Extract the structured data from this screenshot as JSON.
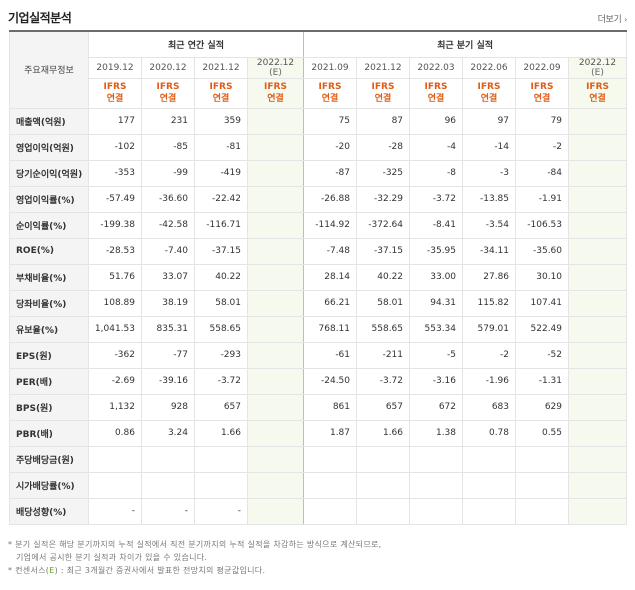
{
  "header": {
    "title": "기업실적분석",
    "more_label": "더보기",
    "more_arrow": "›"
  },
  "table": {
    "row_header_label": "주요재무정보",
    "annual_group_label": "최근 연간 실적",
    "quarter_group_label": "최근 분기 실적",
    "annual_periods": [
      {
        "label": "2019.12",
        "estimate": false
      },
      {
        "label": "2020.12",
        "estimate": false
      },
      {
        "label": "2021.12",
        "estimate": false
      },
      {
        "label": "2022.12",
        "est_label": "(E)",
        "estimate": true
      }
    ],
    "quarter_periods": [
      {
        "label": "2021.09",
        "estimate": false
      },
      {
        "label": "2021.12",
        "estimate": false
      },
      {
        "label": "2022.03",
        "estimate": false
      },
      {
        "label": "2022.06",
        "estimate": false
      },
      {
        "label": "2022.09",
        "estimate": false
      },
      {
        "label": "2022.12",
        "est_label": "(E)",
        "estimate": true
      }
    ],
    "accounting": {
      "line1": "IFRS",
      "line2": "연결"
    },
    "rows": [
      {
        "label": "매출액(억원)",
        "annual": [
          "177",
          "231",
          "359",
          ""
        ],
        "quarter": [
          "75",
          "87",
          "96",
          "97",
          "79",
          ""
        ]
      },
      {
        "label": "영업이익(억원)",
        "annual": [
          "-102",
          "-85",
          "-81",
          ""
        ],
        "quarter": [
          "-20",
          "-28",
          "-4",
          "-14",
          "-2",
          ""
        ]
      },
      {
        "label": "당기순이익(억원)",
        "annual": [
          "-353",
          "-99",
          "-419",
          ""
        ],
        "quarter": [
          "-87",
          "-325",
          "-8",
          "-3",
          "-84",
          ""
        ]
      },
      {
        "label": "영업이익률(%)",
        "annual": [
          "-57.49",
          "-36.60",
          "-22.42",
          ""
        ],
        "quarter": [
          "-26.88",
          "-32.29",
          "-3.72",
          "-13.85",
          "-1.91",
          ""
        ]
      },
      {
        "label": "순이익률(%)",
        "annual": [
          "-199.38",
          "-42.58",
          "-116.71",
          ""
        ],
        "quarter": [
          "-114.92",
          "-372.64",
          "-8.41",
          "-3.54",
          "-106.53",
          ""
        ]
      },
      {
        "label": "ROE(%)",
        "annual": [
          "-28.53",
          "-7.40",
          "-37.15",
          ""
        ],
        "quarter": [
          "-7.48",
          "-37.15",
          "-35.95",
          "-34.11",
          "-35.60",
          ""
        ]
      },
      {
        "label": "부채비율(%)",
        "annual": [
          "51.76",
          "33.07",
          "40.22",
          ""
        ],
        "quarter": [
          "28.14",
          "40.22",
          "33.00",
          "27.86",
          "30.10",
          ""
        ]
      },
      {
        "label": "당좌비율(%)",
        "annual": [
          "108.89",
          "38.19",
          "58.01",
          ""
        ],
        "quarter": [
          "66.21",
          "58.01",
          "94.31",
          "115.82",
          "107.41",
          ""
        ]
      },
      {
        "label": "유보율(%)",
        "annual": [
          "1,041.53",
          "835.31",
          "558.65",
          ""
        ],
        "quarter": [
          "768.11",
          "558.65",
          "553.34",
          "579.01",
          "522.49",
          ""
        ]
      },
      {
        "label": "EPS(원)",
        "annual": [
          "-362",
          "-77",
          "-293",
          ""
        ],
        "quarter": [
          "-61",
          "-211",
          "-5",
          "-2",
          "-52",
          ""
        ]
      },
      {
        "label": "PER(배)",
        "annual": [
          "-2.69",
          "-39.16",
          "-3.72",
          ""
        ],
        "quarter": [
          "-24.50",
          "-3.72",
          "-3.16",
          "-1.96",
          "-1.31",
          ""
        ]
      },
      {
        "label": "BPS(원)",
        "annual": [
          "1,132",
          "928",
          "657",
          ""
        ],
        "quarter": [
          "861",
          "657",
          "672",
          "683",
          "629",
          ""
        ]
      },
      {
        "label": "PBR(배)",
        "annual": [
          "0.86",
          "3.24",
          "1.66",
          ""
        ],
        "quarter": [
          "1.87",
          "1.66",
          "1.38",
          "0.78",
          "0.55",
          ""
        ]
      },
      {
        "label": "주당배당금(원)",
        "annual": [
          "",
          "",
          "",
          ""
        ],
        "quarter": [
          "",
          "",
          "",
          "",
          "",
          ""
        ]
      },
      {
        "label": "시가배당률(%)",
        "annual": [
          "",
          "",
          "",
          ""
        ],
        "quarter": [
          "",
          "",
          "",
          "",
          "",
          ""
        ]
      },
      {
        "label": "배당성향(%)",
        "annual": [
          "-",
          "-",
          "-",
          ""
        ],
        "quarter": [
          "",
          "",
          "",
          "",
          "",
          ""
        ]
      }
    ]
  },
  "notes": {
    "line1": "* 분기 실적은 해당 분기까지의 누적 실적에서 직전 분기까지의 누적 실적을 차감하는 방식으로 계산되므로,",
    "line2": "기업에서 공시한 분기 실적과 차이가 있을 수 있습니다.",
    "line3_prefix": "* 컨센서스(",
    "line3_e": "E",
    "line3_suffix": ") : 최근 3개월간 증권사에서 발표한 전망치의 평균값입니다."
  },
  "colors": {
    "accounting_text": "#e05b14",
    "estimate_bg": "#f6f9ee",
    "table_top_border": "#6b6b6b",
    "estimate_marker": "#6aa31a"
  }
}
